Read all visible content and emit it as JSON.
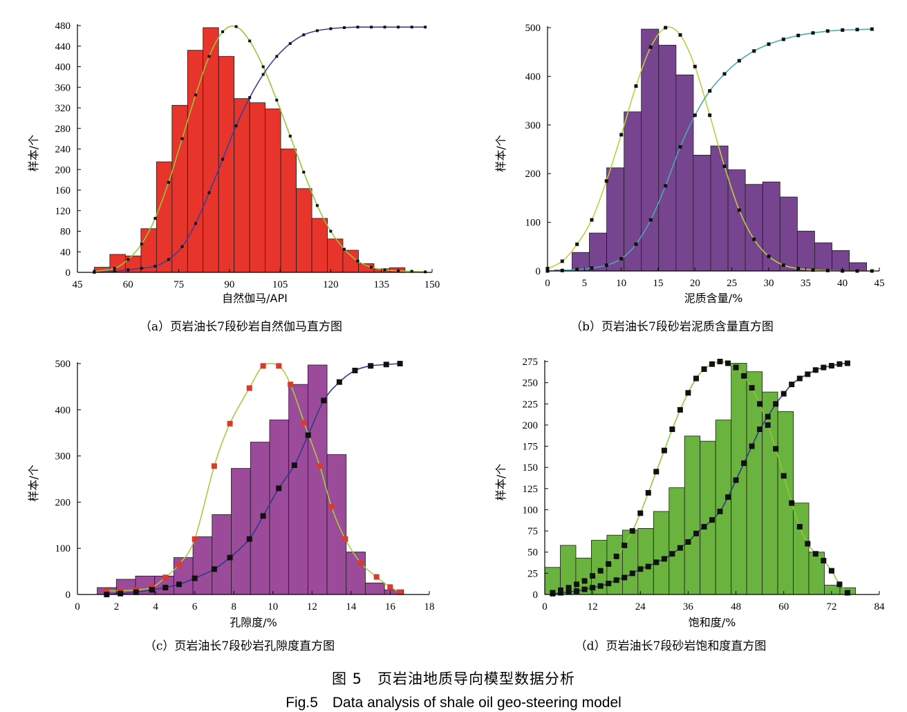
{
  "figure": {
    "caption_cn": "图 5　页岩油地质导向模型数据分析",
    "caption_en": "Fig.5　Data analysis of shale oil geo-steering model"
  },
  "chart_data": [
    {
      "type": "bar",
      "panel": "a",
      "caption": "（a）页岩油长7段砂岩自然伽马直方图",
      "xlabel": "自然伽马/API",
      "ylabel": "样本/个",
      "xlim": [
        45,
        150
      ],
      "ylim": [
        0,
        480
      ],
      "xticks": [
        45,
        60,
        75,
        90,
        105,
        120,
        135,
        150
      ],
      "yticks": [
        0,
        40,
        80,
        120,
        160,
        200,
        240,
        280,
        320,
        360,
        400,
        440,
        480
      ],
      "bar_color": "#e8352b",
      "bin_width": 4.6,
      "bars": [
        {
          "x": 52.3,
          "y": 10
        },
        {
          "x": 56.9,
          "y": 35
        },
        {
          "x": 61.5,
          "y": 32
        },
        {
          "x": 66.1,
          "y": 85
        },
        {
          "x": 70.7,
          "y": 215
        },
        {
          "x": 75.3,
          "y": 325
        },
        {
          "x": 79.9,
          "y": 432
        },
        {
          "x": 84.5,
          "y": 476
        },
        {
          "x": 89.1,
          "y": 420
        },
        {
          "x": 93.7,
          "y": 338
        },
        {
          "x": 98.3,
          "y": 330
        },
        {
          "x": 102.9,
          "y": 318
        },
        {
          "x": 107.5,
          "y": 240
        },
        {
          "x": 112.1,
          "y": 163
        },
        {
          "x": 116.7,
          "y": 105
        },
        {
          "x": 121.3,
          "y": 65
        },
        {
          "x": 125.9,
          "y": 43
        },
        {
          "x": 130.5,
          "y": 17
        },
        {
          "x": 135.1,
          "y": 7
        },
        {
          "x": 139.7,
          "y": 9
        }
      ],
      "series": [
        {
          "name": "",
          "color": "#8fc83c",
          "marker_color": "#111111",
          "marker": "square",
          "x": [
            50,
            56,
            60,
            64,
            68,
            72,
            76,
            80,
            84,
            88,
            92,
            96,
            100,
            104,
            108,
            112,
            116,
            120,
            124,
            128,
            132,
            136,
            140,
            144,
            148
          ],
          "y": [
            2,
            8,
            25,
            55,
            105,
            175,
            260,
            345,
            420,
            468,
            478,
            450,
            400,
            335,
            265,
            195,
            130,
            80,
            45,
            22,
            10,
            5,
            3,
            2,
            1
          ]
        },
        {
          "name": "",
          "color": "#3a3f9a",
          "marker_color": "#111111",
          "marker": "square",
          "x": [
            50,
            56,
            60,
            64,
            68,
            72,
            76,
            80,
            84,
            88,
            92,
            96,
            100,
            104,
            108,
            112,
            116,
            120,
            124,
            128,
            132,
            136,
            140,
            144,
            148
          ],
          "y": [
            0,
            2,
            5,
            8,
            12,
            25,
            50,
            95,
            155,
            220,
            285,
            340,
            385,
            420,
            445,
            462,
            470,
            474,
            476,
            477,
            477,
            477,
            477,
            477,
            477
          ]
        }
      ]
    },
    {
      "type": "bar",
      "panel": "b",
      "caption": "（b）页岩油长7段砂岩泥质含量直方图",
      "xlabel": "泥质含量/%",
      "ylabel": "样本/个",
      "xlim": [
        0,
        45
      ],
      "ylim": [
        0,
        500
      ],
      "xticks": [
        0,
        5,
        10,
        15,
        20,
        25,
        30,
        35,
        40,
        45
      ],
      "yticks": [
        0,
        100,
        200,
        300,
        400,
        500
      ],
      "bar_color": "#774590",
      "bin_width": 2.35,
      "bars": [
        {
          "x": 2.15,
          "y": 2
        },
        {
          "x": 4.5,
          "y": 38
        },
        {
          "x": 6.85,
          "y": 78
        },
        {
          "x": 9.2,
          "y": 212
        },
        {
          "x": 11.55,
          "y": 327
        },
        {
          "x": 13.9,
          "y": 497
        },
        {
          "x": 16.25,
          "y": 464
        },
        {
          "x": 18.6,
          "y": 403
        },
        {
          "x": 20.95,
          "y": 238
        },
        {
          "x": 23.3,
          "y": 257
        },
        {
          "x": 25.65,
          "y": 208
        },
        {
          "x": 28.0,
          "y": 178
        },
        {
          "x": 30.35,
          "y": 183
        },
        {
          "x": 32.7,
          "y": 152
        },
        {
          "x": 35.05,
          "y": 82
        },
        {
          "x": 37.4,
          "y": 58
        },
        {
          "x": 39.75,
          "y": 42
        },
        {
          "x": 42.1,
          "y": 17
        }
      ],
      "series": [
        {
          "name": "",
          "color": "#b8d23a",
          "marker_color": "#111111",
          "marker": "square",
          "x": [
            0,
            2,
            4,
            6,
            8,
            10,
            12,
            14,
            16,
            18,
            20,
            22,
            24,
            26,
            28,
            30,
            32,
            34,
            36,
            38,
            40,
            42,
            44
          ],
          "y": [
            5,
            20,
            55,
            105,
            185,
            280,
            380,
            460,
            500,
            485,
            420,
            320,
            215,
            125,
            65,
            30,
            12,
            5,
            2,
            1,
            0,
            0,
            0
          ]
        },
        {
          "name": "",
          "color": "#4aa8b0",
          "marker_color": "#111111",
          "marker": "square",
          "x": [
            0,
            2,
            4,
            6,
            8,
            10,
            12,
            14,
            16,
            18,
            20,
            22,
            24,
            26,
            28,
            30,
            32,
            34,
            36,
            38,
            40,
            42,
            44
          ],
          "y": [
            0,
            1,
            3,
            6,
            12,
            25,
            55,
            105,
            175,
            255,
            320,
            370,
            405,
            432,
            452,
            466,
            476,
            484,
            489,
            493,
            495,
            496,
            497
          ]
        }
      ]
    },
    {
      "type": "bar",
      "panel": "c",
      "caption": "（c）页岩油长7段砂岩孔隙度直方图",
      "xlabel": "孔隙度/%",
      "ylabel": "样本/个",
      "xlim": [
        0,
        18
      ],
      "ylim": [
        0,
        500
      ],
      "xticks": [
        0,
        2,
        4,
        6,
        8,
        10,
        12,
        14,
        16,
        18
      ],
      "yticks": [
        0,
        100,
        200,
        300,
        400,
        500
      ],
      "bar_color": "#9b4b9a",
      "bin_width": 0.98,
      "bars": [
        {
          "x": 1.5,
          "y": 15
        },
        {
          "x": 2.48,
          "y": 33
        },
        {
          "x": 3.46,
          "y": 40
        },
        {
          "x": 4.44,
          "y": 40
        },
        {
          "x": 5.42,
          "y": 80
        },
        {
          "x": 6.4,
          "y": 125
        },
        {
          "x": 7.38,
          "y": 173
        },
        {
          "x": 8.36,
          "y": 273
        },
        {
          "x": 9.34,
          "y": 330
        },
        {
          "x": 10.32,
          "y": 378
        },
        {
          "x": 11.3,
          "y": 455
        },
        {
          "x": 12.28,
          "y": 497
        },
        {
          "x": 13.26,
          "y": 303
        },
        {
          "x": 14.24,
          "y": 92
        },
        {
          "x": 15.22,
          "y": 25
        },
        {
          "x": 16.2,
          "y": 10
        }
      ],
      "series": [
        {
          "name": "",
          "color": "#a8cc3c",
          "marker_color": "#d93a2b",
          "marker": "square",
          "x": [
            1.5,
            2.2,
            3.0,
            3.8,
            4.5,
            5.2,
            6.0,
            7.0,
            7.8,
            8.8,
            9.5,
            10.3,
            10.9,
            11.6,
            12.4,
            13.0,
            13.7,
            14.5,
            15.3,
            16.0,
            16.5
          ],
          "y": [
            8,
            8,
            10,
            15,
            37,
            65,
            120,
            278,
            370,
            447,
            495,
            495,
            455,
            372,
            278,
            190,
            120,
            68,
            38,
            16,
            5
          ]
        },
        {
          "name": "",
          "color": "#2d3a8c",
          "marker_color": "#111111",
          "marker": "square",
          "x": [
            1.5,
            2.2,
            3.0,
            3.8,
            4.5,
            5.2,
            6.0,
            7.0,
            7.8,
            8.8,
            9.5,
            10.3,
            11.1,
            11.8,
            12.6,
            13.4,
            14.2,
            15.0,
            15.8,
            16.5
          ],
          "y": [
            0,
            2,
            5,
            10,
            15,
            22,
            35,
            55,
            80,
            120,
            170,
            230,
            280,
            345,
            420,
            460,
            485,
            495,
            498,
            500
          ]
        }
      ]
    },
    {
      "type": "bar",
      "panel": "d",
      "caption": "（d）页岩油长7段砂岩饱和度直方图",
      "xlabel": "饱和度/%",
      "ylabel": "样本/个",
      "xlim": [
        0,
        84
      ],
      "ylim": [
        0,
        275
      ],
      "xticks": [
        0,
        12,
        24,
        36,
        48,
        60,
        72,
        84
      ],
      "yticks": [
        0,
        25,
        50,
        75,
        100,
        125,
        150,
        175,
        200,
        225,
        250,
        275
      ],
      "bar_color": "#6ab33e",
      "bin_width": 3.9,
      "bars": [
        {
          "x": 1.95,
          "y": 32
        },
        {
          "x": 5.85,
          "y": 58
        },
        {
          "x": 9.75,
          "y": 43
        },
        {
          "x": 13.65,
          "y": 64
        },
        {
          "x": 17.55,
          "y": 70
        },
        {
          "x": 21.45,
          "y": 76
        },
        {
          "x": 25.35,
          "y": 78
        },
        {
          "x": 29.25,
          "y": 98
        },
        {
          "x": 33.15,
          "y": 126
        },
        {
          "x": 37.05,
          "y": 187
        },
        {
          "x": 40.95,
          "y": 181
        },
        {
          "x": 44.85,
          "y": 206
        },
        {
          "x": 48.75,
          "y": 273
        },
        {
          "x": 52.65,
          "y": 263
        },
        {
          "x": 56.55,
          "y": 239
        },
        {
          "x": 60.45,
          "y": 216
        },
        {
          "x": 64.35,
          "y": 108
        },
        {
          "x": 68.25,
          "y": 50
        },
        {
          "x": 72.15,
          "y": 11
        },
        {
          "x": 76.05,
          "y": 8
        }
      ],
      "series": [
        {
          "name": "",
          "color": "#8fc83c",
          "marker_color": "#111111",
          "marker": "square",
          "x": [
            2,
            4,
            6,
            8,
            10,
            12,
            14,
            16,
            18,
            20,
            22,
            24,
            26,
            28,
            30,
            32,
            34,
            36,
            38,
            40,
            42,
            44,
            46,
            48,
            50,
            52,
            54,
            56,
            58,
            60,
            62,
            64,
            66,
            68,
            70,
            72,
            74,
            76
          ],
          "y": [
            2,
            5,
            8,
            12,
            16,
            22,
            28,
            36,
            45,
            58,
            75,
            96,
            120,
            145,
            170,
            195,
            218,
            238,
            255,
            266,
            272,
            275,
            273,
            268,
            258,
            244,
            225,
            200,
            172,
            140,
            108,
            80,
            60,
            48,
            40,
            28,
            12,
            2
          ]
        },
        {
          "name": "",
          "color": "#2d3a8c",
          "marker_color": "#111111",
          "marker": "square",
          "x": [
            2,
            4,
            6,
            8,
            10,
            12,
            14,
            16,
            18,
            20,
            22,
            24,
            26,
            28,
            30,
            32,
            34,
            36,
            38,
            40,
            42,
            44,
            46,
            48,
            50,
            52,
            54,
            56,
            58,
            60,
            62,
            64,
            66,
            68,
            70,
            72,
            74,
            76
          ],
          "y": [
            1,
            2,
            3,
            4,
            6,
            8,
            10,
            13,
            17,
            20,
            25,
            30,
            33,
            38,
            42,
            48,
            55,
            62,
            72,
            80,
            88,
            98,
            115,
            135,
            155,
            175,
            195,
            210,
            225,
            237,
            248,
            255,
            260,
            265,
            268,
            270,
            272,
            273
          ]
        }
      ]
    }
  ]
}
